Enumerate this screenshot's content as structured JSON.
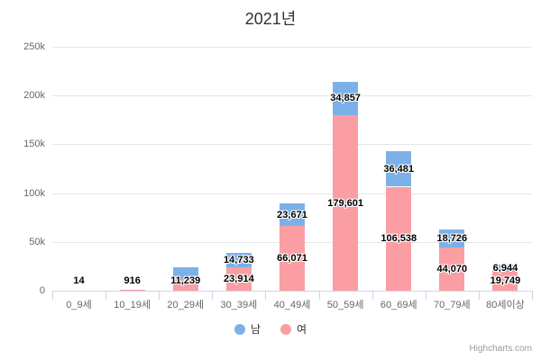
{
  "credits": "Highcharts.com",
  "chart_data": {
    "type": "bar",
    "stacked": true,
    "title": "2021년",
    "categories": [
      "0_9세",
      "10_19세",
      "20_29세",
      "30_39세",
      "40_49세",
      "50_59세",
      "60_69세",
      "70_79세",
      "80세이상"
    ],
    "series": [
      {
        "name": "남",
        "color": "#7CB0E8",
        "values": [
          0,
          0,
          12700,
          14733,
          23671,
          34857,
          36481,
          18726,
          6944
        ],
        "labels": [
          null,
          null,
          null,
          "14,733",
          "23,671",
          "34,857",
          "36,481",
          "18,726",
          "6,944"
        ]
      },
      {
        "name": "여",
        "color": "#FB9EA3",
        "values": [
          14,
          916,
          11239,
          23914,
          66071,
          179601,
          106538,
          44070,
          19749
        ],
        "labels": [
          "14",
          "916",
          "11,239",
          "23,914",
          "66,071",
          "179,601",
          "106,538",
          "44,070",
          "19,749"
        ]
      }
    ],
    "ylim": [
      0,
      250000
    ],
    "yticks": [
      {
        "value": 0,
        "label": "0"
      },
      {
        "value": 50000,
        "label": "50k"
      },
      {
        "value": 100000,
        "label": "100k"
      },
      {
        "value": 150000,
        "label": "150k"
      },
      {
        "value": 200000,
        "label": "200k"
      },
      {
        "value": 250000,
        "label": "250k"
      }
    ],
    "grid": true,
    "legend_position": "bottom-center"
  }
}
